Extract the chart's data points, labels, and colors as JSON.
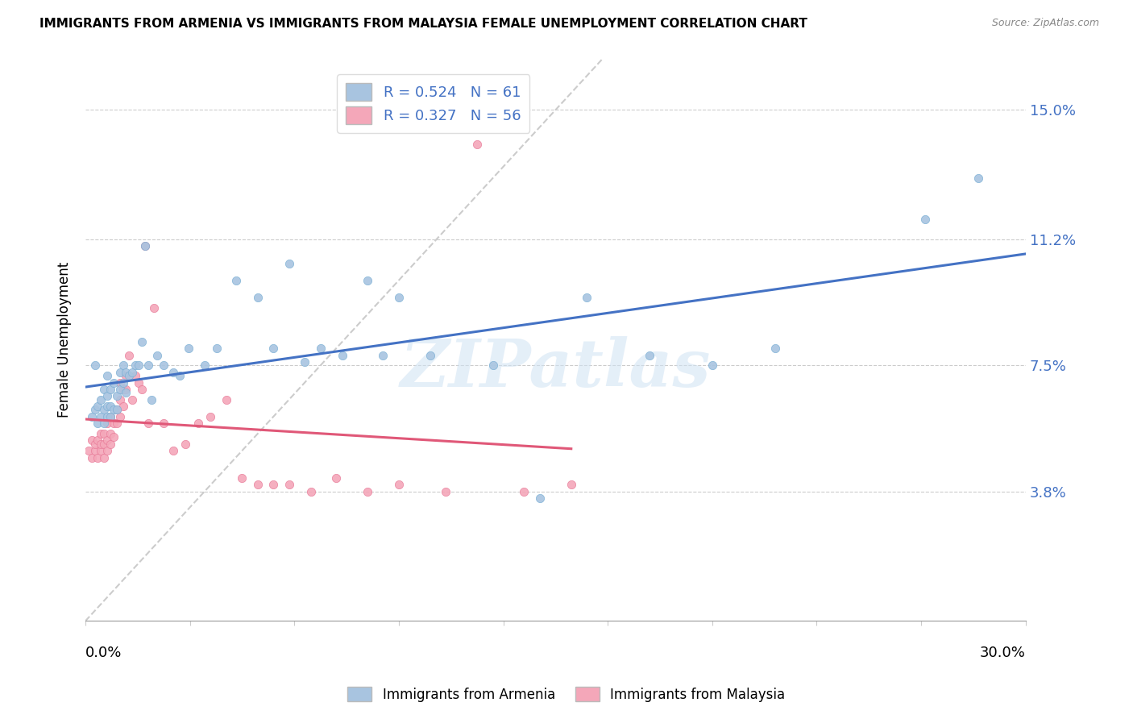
{
  "title": "IMMIGRANTS FROM ARMENIA VS IMMIGRANTS FROM MALAYSIA FEMALE UNEMPLOYMENT CORRELATION CHART",
  "source": "Source: ZipAtlas.com",
  "ylabel": "Female Unemployment",
  "yticks": [
    0.038,
    0.075,
    0.112,
    0.15
  ],
  "ytick_labels": [
    "3.8%",
    "7.5%",
    "11.2%",
    "15.0%"
  ],
  "xmin": 0.0,
  "xmax": 0.3,
  "ymin": 0.0,
  "ymax": 0.165,
  "armenia_color": "#a8c4e0",
  "malaysia_color": "#f4a7b9",
  "armenia_edge_color": "#7aafd4",
  "malaysia_edge_color": "#e87a98",
  "armenia_line_color": "#4472c4",
  "malaysia_line_color": "#e05878",
  "armenia_R": 0.524,
  "armenia_N": 61,
  "malaysia_R": 0.327,
  "malaysia_N": 56,
  "legend_label_armenia": "Immigrants from Armenia",
  "legend_label_malaysia": "Immigrants from Malaysia",
  "watermark": "ZIPatlas",
  "armenia_scatter_x": [
    0.002,
    0.003,
    0.003,
    0.004,
    0.004,
    0.005,
    0.005,
    0.006,
    0.006,
    0.006,
    0.007,
    0.007,
    0.007,
    0.007,
    0.008,
    0.008,
    0.008,
    0.009,
    0.009,
    0.01,
    0.01,
    0.011,
    0.011,
    0.012,
    0.012,
    0.013,
    0.013,
    0.014,
    0.015,
    0.016,
    0.017,
    0.018,
    0.019,
    0.02,
    0.021,
    0.023,
    0.025,
    0.028,
    0.03,
    0.033,
    0.038,
    0.042,
    0.048,
    0.055,
    0.06,
    0.065,
    0.07,
    0.075,
    0.082,
    0.09,
    0.095,
    0.1,
    0.11,
    0.13,
    0.145,
    0.16,
    0.18,
    0.2,
    0.22,
    0.268,
    0.285
  ],
  "armenia_scatter_y": [
    0.06,
    0.075,
    0.062,
    0.058,
    0.063,
    0.06,
    0.065,
    0.058,
    0.062,
    0.068,
    0.06,
    0.063,
    0.066,
    0.072,
    0.06,
    0.063,
    0.068,
    0.062,
    0.07,
    0.062,
    0.066,
    0.068,
    0.073,
    0.07,
    0.075,
    0.067,
    0.073,
    0.072,
    0.073,
    0.075,
    0.075,
    0.082,
    0.11,
    0.075,
    0.065,
    0.078,
    0.075,
    0.073,
    0.072,
    0.08,
    0.075,
    0.08,
    0.1,
    0.095,
    0.08,
    0.105,
    0.076,
    0.08,
    0.078,
    0.1,
    0.078,
    0.095,
    0.078,
    0.075,
    0.036,
    0.095,
    0.078,
    0.075,
    0.08,
    0.118,
    0.13
  ],
  "malaysia_scatter_x": [
    0.001,
    0.002,
    0.002,
    0.003,
    0.003,
    0.004,
    0.004,
    0.005,
    0.005,
    0.005,
    0.006,
    0.006,
    0.006,
    0.007,
    0.007,
    0.007,
    0.008,
    0.008,
    0.008,
    0.009,
    0.009,
    0.01,
    0.01,
    0.011,
    0.011,
    0.011,
    0.012,
    0.012,
    0.013,
    0.013,
    0.014,
    0.015,
    0.016,
    0.017,
    0.018,
    0.019,
    0.02,
    0.022,
    0.025,
    0.028,
    0.032,
    0.036,
    0.04,
    0.045,
    0.05,
    0.055,
    0.06,
    0.065,
    0.072,
    0.08,
    0.09,
    0.1,
    0.115,
    0.125,
    0.14,
    0.155
  ],
  "malaysia_scatter_y": [
    0.05,
    0.048,
    0.053,
    0.05,
    0.052,
    0.048,
    0.053,
    0.05,
    0.052,
    0.055,
    0.048,
    0.052,
    0.055,
    0.05,
    0.053,
    0.058,
    0.052,
    0.055,
    0.06,
    0.054,
    0.058,
    0.058,
    0.062,
    0.06,
    0.065,
    0.07,
    0.063,
    0.068,
    0.068,
    0.072,
    0.078,
    0.065,
    0.072,
    0.07,
    0.068,
    0.11,
    0.058,
    0.092,
    0.058,
    0.05,
    0.052,
    0.058,
    0.06,
    0.065,
    0.042,
    0.04,
    0.04,
    0.04,
    0.038,
    0.042,
    0.038,
    0.04,
    0.038,
    0.14,
    0.038,
    0.04
  ]
}
